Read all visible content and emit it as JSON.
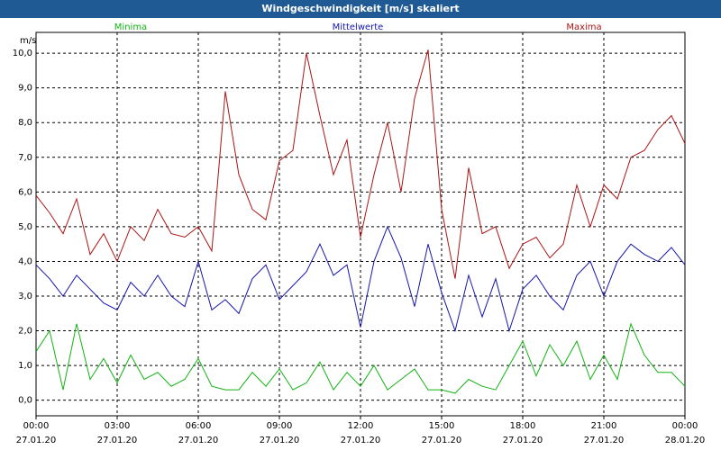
{
  "window": {
    "title": "Windgeschwindigkeit [m/s] skaliert"
  },
  "chart_data": {
    "type": "line",
    "title": "Windgeschwindigkeit [m/s] skaliert",
    "ylabel": "m/s",
    "ylim": [
      -0.45,
      10.6
    ],
    "yticks": [
      "0,0",
      "1,0",
      "2,0",
      "3,0",
      "4,0",
      "5,0",
      "6,0",
      "7,0",
      "8,0",
      "9,0",
      "10,0"
    ],
    "xlim": [
      0,
      24
    ],
    "xticks": [
      {
        "time": "00:00",
        "date": "27.01.20"
      },
      {
        "time": "03:00",
        "date": "27.01.20"
      },
      {
        "time": "06:00",
        "date": "27.01.20"
      },
      {
        "time": "09:00",
        "date": "27.01.20"
      },
      {
        "time": "12:00",
        "date": "27.01.20"
      },
      {
        "time": "15:00",
        "date": "27.01.20"
      },
      {
        "time": "18:00",
        "date": "27.01.20"
      },
      {
        "time": "21:00",
        "date": "27.01.20"
      },
      {
        "time": "00:00",
        "date": "28.01.20"
      }
    ],
    "grid": true,
    "legend_position": "top",
    "series": [
      {
        "name": "Minima",
        "color": "#12b312",
        "x": [
          0,
          0.5,
          1,
          1.5,
          2,
          2.5,
          3,
          3.5,
          4,
          4.5,
          5,
          5.5,
          6,
          6.5,
          7,
          7.5,
          8,
          8.5,
          9,
          9.5,
          10,
          10.5,
          11,
          11.5,
          12,
          12.5,
          13,
          13.5,
          14,
          14.5,
          15,
          15.5,
          16,
          16.5,
          17,
          17.5,
          18,
          18.5,
          19,
          19.5,
          20,
          20.5,
          21,
          21.5,
          22,
          22.5,
          23,
          23.5,
          24
        ],
        "values": [
          1.4,
          2.0,
          0.3,
          2.2,
          0.6,
          1.2,
          0.5,
          1.3,
          0.6,
          0.8,
          0.4,
          0.6,
          1.2,
          0.4,
          0.3,
          0.3,
          0.8,
          0.4,
          0.9,
          0.3,
          0.5,
          1.1,
          0.3,
          0.8,
          0.4,
          1.0,
          0.3,
          0.6,
          0.9,
          0.3,
          0.3,
          0.2,
          0.6,
          0.4,
          0.3,
          1.0,
          1.7,
          0.7,
          1.6,
          1.0,
          1.7,
          0.6,
          1.3,
          0.6,
          2.2,
          1.3,
          0.8,
          0.8,
          0.4
        ]
      },
      {
        "name": "Mittelwerte",
        "color": "#1515aa",
        "x": [
          0,
          0.5,
          1,
          1.5,
          2,
          2.5,
          3,
          3.5,
          4,
          4.5,
          5,
          5.5,
          6,
          6.5,
          7,
          7.5,
          8,
          8.5,
          9,
          9.5,
          10,
          10.5,
          11,
          11.5,
          12,
          12.5,
          13,
          13.5,
          14,
          14.5,
          15,
          15.5,
          16,
          16.5,
          17,
          17.5,
          18,
          18.5,
          19,
          19.5,
          20,
          20.5,
          21,
          21.5,
          22,
          22.5,
          23,
          23.5,
          24
        ],
        "values": [
          3.9,
          3.5,
          3.0,
          3.6,
          3.2,
          2.8,
          2.6,
          3.4,
          3.0,
          3.6,
          3.0,
          2.7,
          4.0,
          2.6,
          2.9,
          2.5,
          3.5,
          3.9,
          2.9,
          3.3,
          3.7,
          4.5,
          3.6,
          3.9,
          2.1,
          4.0,
          5.0,
          4.1,
          2.7,
          4.5,
          3.1,
          2.0,
          3.6,
          2.4,
          3.5,
          2.0,
          3.2,
          3.6,
          3.0,
          2.6,
          3.6,
          4.0,
          3.0,
          4.0,
          4.5,
          4.2,
          4.0,
          4.4,
          3.9
        ]
      },
      {
        "name": "Maxima",
        "color": "#aa1515",
        "x": [
          0,
          0.5,
          1,
          1.5,
          2,
          2.5,
          3,
          3.5,
          4,
          4.5,
          5,
          5.5,
          6,
          6.5,
          7,
          7.5,
          8,
          8.5,
          9,
          9.5,
          10,
          10.5,
          11,
          11.5,
          12,
          12.5,
          13,
          13.5,
          14,
          14.5,
          15,
          15.5,
          16,
          16.5,
          17,
          17.5,
          18,
          18.5,
          19,
          19.5,
          20,
          20.5,
          21,
          21.5,
          22,
          22.5,
          23,
          23.5,
          24
        ],
        "values": [
          5.9,
          5.4,
          4.8,
          5.8,
          4.2,
          4.8,
          4.0,
          5.0,
          4.6,
          5.5,
          4.8,
          4.7,
          5.0,
          4.3,
          8.9,
          6.5,
          5.5,
          5.2,
          6.9,
          7.2,
          10.0,
          8.2,
          6.5,
          7.5,
          4.7,
          6.5,
          8.0,
          6.0,
          8.7,
          10.1,
          5.5,
          3.5,
          6.7,
          4.8,
          5.0,
          3.8,
          4.5,
          4.7,
          4.1,
          4.5,
          6.2,
          5.0,
          6.2,
          5.8,
          7.0,
          7.2,
          7.8,
          8.2,
          7.4
        ]
      }
    ]
  }
}
